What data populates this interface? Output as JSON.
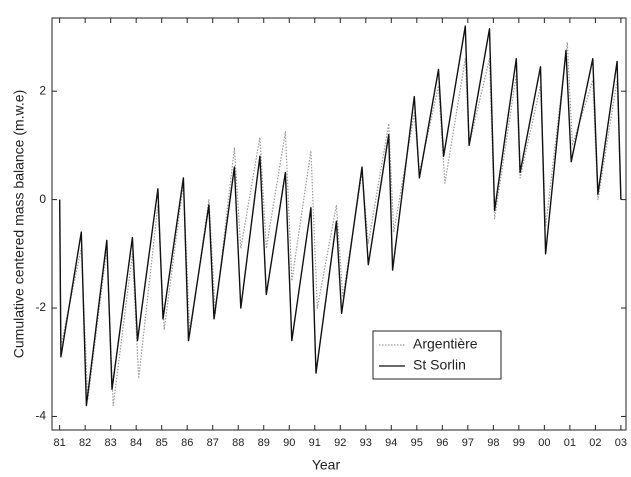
{
  "chart_data": {
    "type": "line",
    "xlabel": "Year",
    "ylabel": "Cumulative centered mass balance (m.w.e)",
    "xlim": [
      80.7,
      103.2
    ],
    "ylim": [
      -4.25,
      3.35
    ],
    "xticks": [
      81,
      82,
      83,
      84,
      85,
      86,
      87,
      88,
      89,
      90,
      91,
      92,
      93,
      94,
      95,
      96,
      97,
      98,
      99,
      {
        "value": 100,
        "label": "00"
      },
      {
        "value": 101,
        "label": "01"
      },
      {
        "value": 102,
        "label": "02"
      },
      {
        "value": 103,
        "label": "03"
      }
    ],
    "yticks": [
      -4,
      -2,
      0,
      2
    ],
    "legend": "lower-center",
    "series": [
      {
        "name": "Argentière",
        "color": "#999999",
        "style": "dotted",
        "x": [
          81.0,
          81.05,
          81.85,
          82.1,
          82.85,
          83.1,
          83.85,
          84.1,
          84.85,
          85.1,
          85.85,
          86.1,
          86.85,
          87.1,
          87.85,
          88.1,
          88.85,
          89.1,
          89.85,
          90.1,
          90.85,
          91.1,
          91.85,
          92.1,
          92.85,
          93.1,
          93.9,
          94.1,
          94.9,
          95.1,
          95.85,
          96.1,
          96.9,
          97.05,
          97.85,
          98.05,
          98.9,
          99.05,
          99.85,
          100.05,
          100.9,
          101.1,
          101.9,
          102.1,
          102.85,
          103.0
        ],
        "values": [
          0,
          -2.7,
          -0.9,
          -3.7,
          -0.9,
          -3.8,
          -1.0,
          -3.3,
          -0.1,
          -2.4,
          0.3,
          -2.5,
          0.0,
          -2.1,
          0.95,
          -0.9,
          1.15,
          -0.9,
          1.25,
          -1.5,
          0.9,
          -2.0,
          -0.1,
          -1.8,
          0.5,
          -0.8,
          1.4,
          -0.6,
          1.6,
          0.5,
          2.1,
          0.3,
          2.6,
          1.0,
          2.6,
          -0.35,
          2.3,
          0.4,
          2.1,
          -0.5,
          2.9,
          1.0,
          2.2,
          0.0,
          2.2,
          0
        ]
      },
      {
        "name": "St Sorlin",
        "color": "#111111",
        "style": "solid",
        "x": [
          81.0,
          81.05,
          81.85,
          82.05,
          82.85,
          83.05,
          83.85,
          84.05,
          84.85,
          85.05,
          85.85,
          86.05,
          86.85,
          87.05,
          87.85,
          88.1,
          88.85,
          89.1,
          89.85,
          90.1,
          90.85,
          91.05,
          91.85,
          92.05,
          92.85,
          93.1,
          93.9,
          94.05,
          94.9,
          95.1,
          95.85,
          96.05,
          96.9,
          97.05,
          97.85,
          98.05,
          98.9,
          99.05,
          99.85,
          100.05,
          100.85,
          101.05,
          101.9,
          102.1,
          102.85,
          103.0
        ],
        "values": [
          0,
          -2.9,
          -0.6,
          -3.8,
          -0.75,
          -3.5,
          -0.7,
          -2.6,
          0.2,
          -2.2,
          0.4,
          -2.6,
          -0.1,
          -2.2,
          0.6,
          -2.0,
          0.8,
          -1.75,
          0.5,
          -2.6,
          -0.15,
          -3.2,
          -0.4,
          -2.1,
          0.6,
          -1.2,
          1.2,
          -1.3,
          1.9,
          0.4,
          2.4,
          0.8,
          3.2,
          1.0,
          3.15,
          -0.2,
          2.6,
          0.5,
          2.45,
          -1.0,
          2.75,
          0.7,
          2.6,
          0.1,
          2.55,
          0
        ]
      }
    ]
  }
}
